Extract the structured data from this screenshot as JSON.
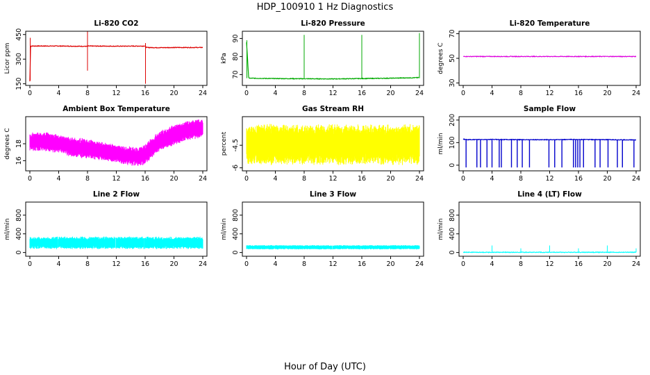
{
  "figure": {
    "title": "HDP_100910  1 Hz Diagnostics",
    "xlabel": "Hour of Day (UTC)"
  },
  "chart_data": [
    {
      "type": "line",
      "title": "Li-820 CO2",
      "ylabel": "Licor ppm",
      "xlim": [
        0,
        24
      ],
      "ylim": [
        140,
        470
      ],
      "xticks": [
        0,
        4,
        8,
        12,
        16,
        20,
        24
      ],
      "yticks": [
        150,
        300,
        450
      ],
      "color": "#dd0000",
      "series": [
        {
          "x": [
            0,
            0.1,
            0.2,
            4,
            8,
            8.02,
            12,
            16,
            16.1,
            16.2,
            18,
            20,
            24
          ],
          "y": [
            165,
            380,
            380,
            380,
            378,
            380,
            379,
            380,
            375,
            371,
            370,
            371,
            371
          ]
        }
      ],
      "spikes": [
        {
          "x": 8.0,
          "lo": 230,
          "hi": 470
        },
        {
          "x": 16.05,
          "lo": 150,
          "hi": 398
        },
        {
          "x": 0.05,
          "lo": 170,
          "hi": 430
        }
      ]
    },
    {
      "type": "line",
      "title": "Li-820 Pressure",
      "ylabel": "kPa",
      "xlim": [
        0,
        24
      ],
      "ylim": [
        64,
        94
      ],
      "xticks": [
        0,
        4,
        8,
        12,
        16,
        20,
        24
      ],
      "yticks": [
        70,
        80,
        90
      ],
      "color": "#00aa00",
      "series": [
        {
          "x": [
            0,
            0.3,
            4,
            8,
            12,
            16,
            20,
            23.9
          ],
          "y": [
            88,
            68.0,
            67.8,
            67.7,
            67.6,
            67.8,
            68.0,
            68.3
          ]
        }
      ],
      "spikes": [
        {
          "x": 0.05,
          "lo": 68,
          "hi": 89
        },
        {
          "x": 8.0,
          "lo": 68,
          "hi": 92
        },
        {
          "x": 16.0,
          "lo": 68,
          "hi": 92
        },
        {
          "x": 24.0,
          "lo": 68,
          "hi": 93
        }
      ]
    },
    {
      "type": "line",
      "title": "Li-820 Temperature",
      "ylabel": "degrees C",
      "xlim": [
        0,
        24
      ],
      "ylim": [
        28,
        72
      ],
      "xticks": [
        0,
        4,
        8,
        12,
        16,
        20,
        24
      ],
      "yticks": [
        30,
        50,
        70
      ],
      "color": "#dd00dd",
      "series": [
        {
          "x": [
            0,
            24
          ],
          "y": [
            51.5,
            51.5
          ]
        }
      ]
    },
    {
      "type": "area",
      "title": "Ambient Box Temperature",
      "ylabel": "degrees C",
      "xlim": [
        0,
        24
      ],
      "ylim": [
        14.8,
        21.2
      ],
      "xticks": [
        0,
        4,
        8,
        12,
        16,
        20,
        24
      ],
      "yticks": [
        16,
        18
      ],
      "color": "#ff00ff",
      "x": [
        0,
        2,
        4,
        6,
        8,
        10,
        12,
        14,
        15,
        16,
        17,
        18,
        20,
        22,
        24
      ],
      "upper": [
        19.2,
        19.3,
        19.0,
        18.7,
        18.5,
        18.2,
        17.8,
        17.6,
        17.5,
        17.8,
        18.7,
        19.4,
        20.2,
        20.6,
        20.9
      ],
      "lower": [
        17.2,
        17.2,
        17.0,
        16.5,
        16.3,
        16.1,
        15.8,
        15.5,
        15.4,
        15.6,
        16.5,
        17.2,
        17.9,
        18.5,
        18.8
      ]
    },
    {
      "type": "area",
      "title": "Gas Stream RH",
      "ylabel": "percent",
      "xlim": [
        0,
        24
      ],
      "ylim": [
        -6.2,
        -2.6
      ],
      "xticks": [
        0,
        4,
        8,
        12,
        16,
        20,
        24
      ],
      "yticks": [
        -6.0,
        -4.5
      ],
      "color": "#ffff00",
      "x": [
        0,
        24
      ],
      "upper": [
        -3.2,
        -3.2
      ],
      "lower": [
        -5.7,
        -5.7
      ]
    },
    {
      "type": "line",
      "title": "Sample Flow",
      "ylabel": "ml/min",
      "xlim": [
        0,
        24
      ],
      "ylim": [
        -25,
        215
      ],
      "xticks": [
        0,
        4,
        8,
        12,
        16,
        20,
        24
      ],
      "yticks": [
        0,
        100,
        200
      ],
      "color": "#0000cc",
      "series": [
        {
          "x": [
            0,
            0.5,
            4,
            8,
            12,
            16,
            20,
            24
          ],
          "y": [
            116,
            113,
            114,
            113,
            113,
            114,
            113,
            112
          ]
        }
      ],
      "dropouts": [
        0.4,
        1.9,
        2.4,
        3.3,
        4.0,
        5.0,
        5.3,
        6.7,
        7.5,
        8.2,
        9.2,
        11.9,
        12.7,
        13.7,
        15.3,
        15.6,
        15.9,
        16.2,
        16.7,
        18.3,
        19.0,
        20.1,
        21.4,
        22.1,
        23.7
      ]
    },
    {
      "type": "area",
      "title": "Line 2 Flow",
      "ylabel": "ml/min",
      "xlim": [
        0,
        24
      ],
      "ylim": [
        -80,
        1080
      ],
      "xticks": [
        0,
        4,
        8,
        12,
        16,
        20,
        24
      ],
      "yticks": [
        0,
        400,
        800
      ],
      "color": "#00ffff",
      "x": [
        0,
        24
      ],
      "upper": [
        330,
        330
      ],
      "lower": [
        85,
        85
      ],
      "gaps": [
        3.9,
        7.9,
        11.9,
        15.9,
        19.9
      ]
    },
    {
      "type": "area",
      "title": "Line 3 Flow",
      "ylabel": "ml/min",
      "xlim": [
        0,
        24
      ],
      "ylim": [
        -80,
        1080
      ],
      "xticks": [
        0,
        4,
        8,
        12,
        16,
        20,
        24
      ],
      "yticks": [
        0,
        400,
        800
      ],
      "color": "#00ffff",
      "x": [
        0,
        24
      ],
      "upper": [
        155,
        155
      ],
      "lower": [
        70,
        70
      ],
      "gaps": [
        3.9,
        7.9,
        11.9,
        15.9,
        19.9
      ]
    },
    {
      "type": "line",
      "title": "Line 4 (LT) Flow",
      "ylabel": "ml/min",
      "xlim": [
        0,
        24
      ],
      "ylim": [
        -80,
        1080
      ],
      "xticks": [
        0,
        4,
        8,
        12,
        16,
        20,
        24
      ],
      "yticks": [
        0,
        400,
        800
      ],
      "color": "#00ffff",
      "series": [
        {
          "x": [
            0,
            24
          ],
          "y": [
            5,
            5
          ]
        }
      ],
      "spikes": [
        {
          "x": 4.0,
          "lo": 5,
          "hi": 150
        },
        {
          "x": 8.0,
          "lo": 5,
          "hi": 90
        },
        {
          "x": 12.0,
          "lo": 5,
          "hi": 150
        },
        {
          "x": 16.0,
          "lo": 5,
          "hi": 90
        },
        {
          "x": 20.0,
          "lo": 5,
          "hi": 150
        },
        {
          "x": 24.0,
          "lo": 5,
          "hi": 90
        }
      ]
    }
  ]
}
